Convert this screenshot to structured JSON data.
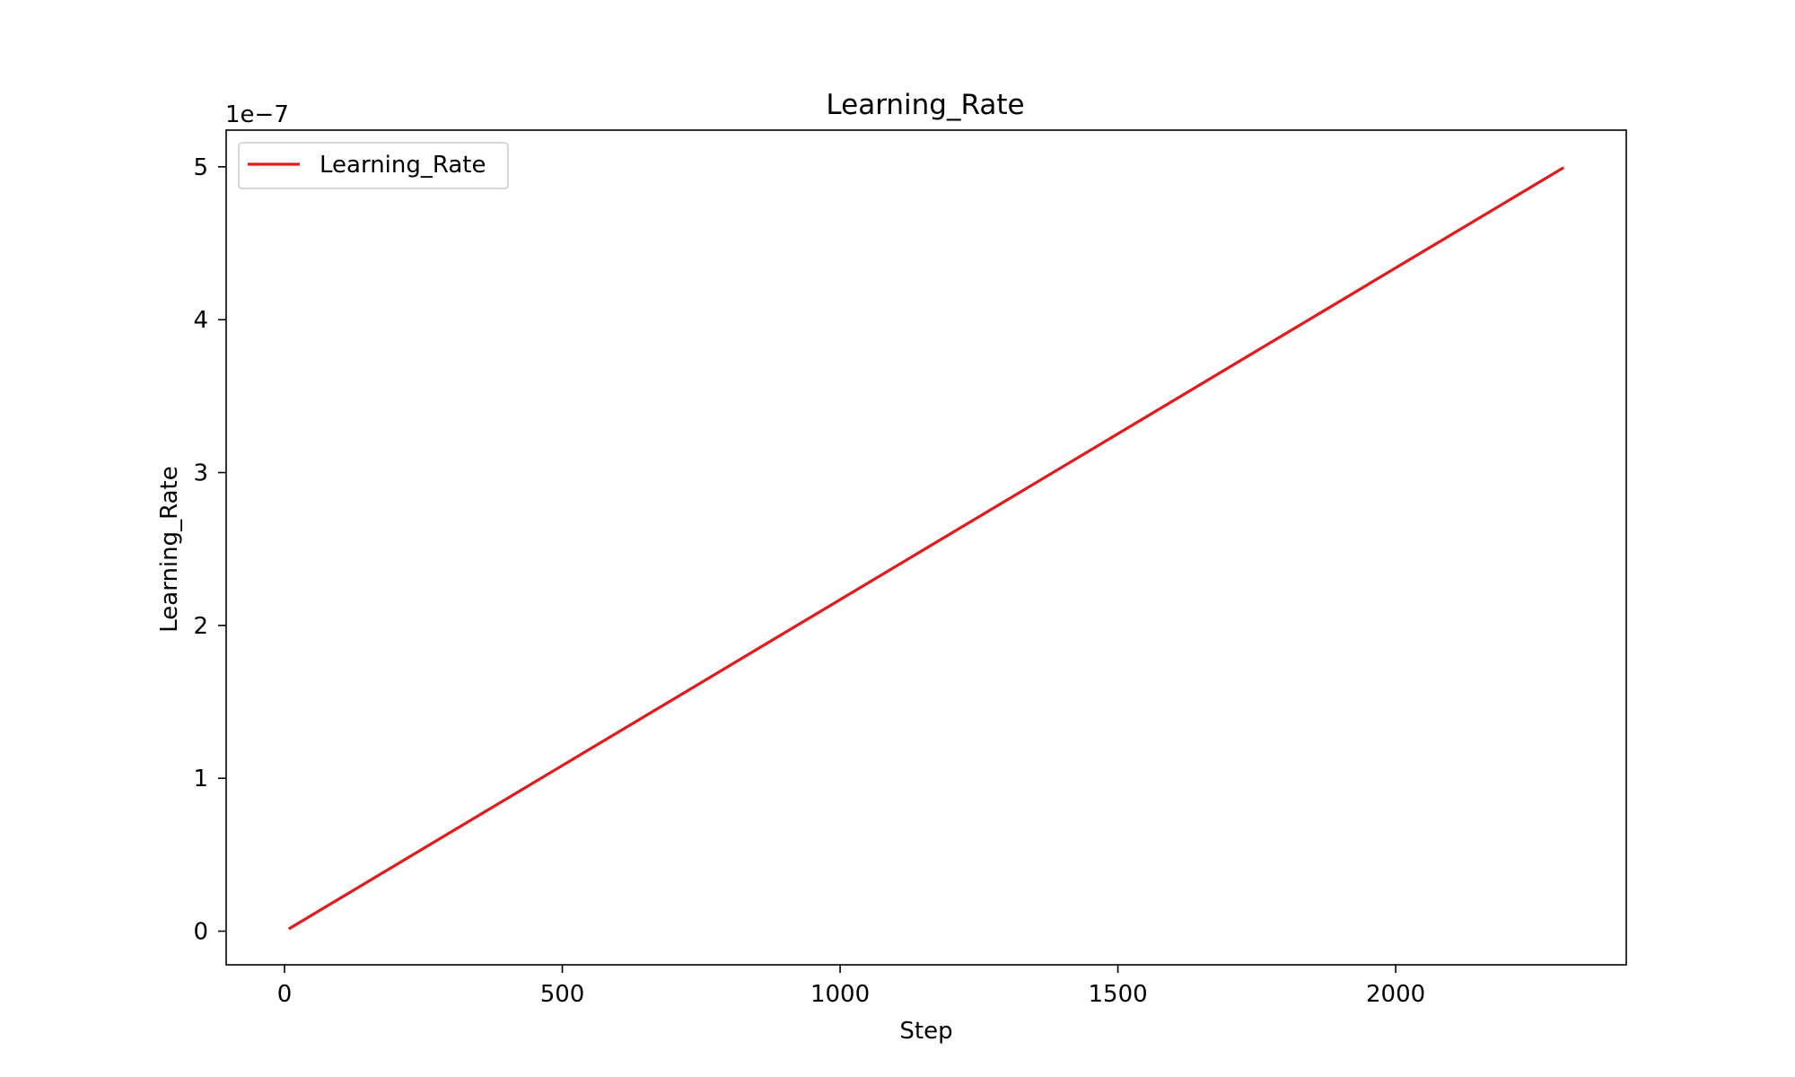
{
  "chart_data": {
    "type": "line",
    "title": "Learning_Rate",
    "xlabel": "Step",
    "ylabel": "Learning_Rate",
    "y_offset_text": "1e−7",
    "xlim": [
      -105,
      2415
    ],
    "ylim": [
      -0.22,
      5.24
    ],
    "x_ticks": [
      0,
      500,
      1000,
      1500,
      2000
    ],
    "y_ticks": [
      0,
      1,
      2,
      3,
      4,
      5
    ],
    "x_tick_labels": [
      "0",
      "500",
      "1000",
      "1500",
      "2000"
    ],
    "y_tick_labels": [
      "0",
      "1",
      "2",
      "3",
      "4",
      "5"
    ],
    "grid": false,
    "legend": "upper-left",
    "series": [
      {
        "name": "Learning_Rate",
        "color": "#e31a1c",
        "x": [
          10,
          2300
        ],
        "y": [
          0.02,
          4.99
        ]
      }
    ]
  }
}
